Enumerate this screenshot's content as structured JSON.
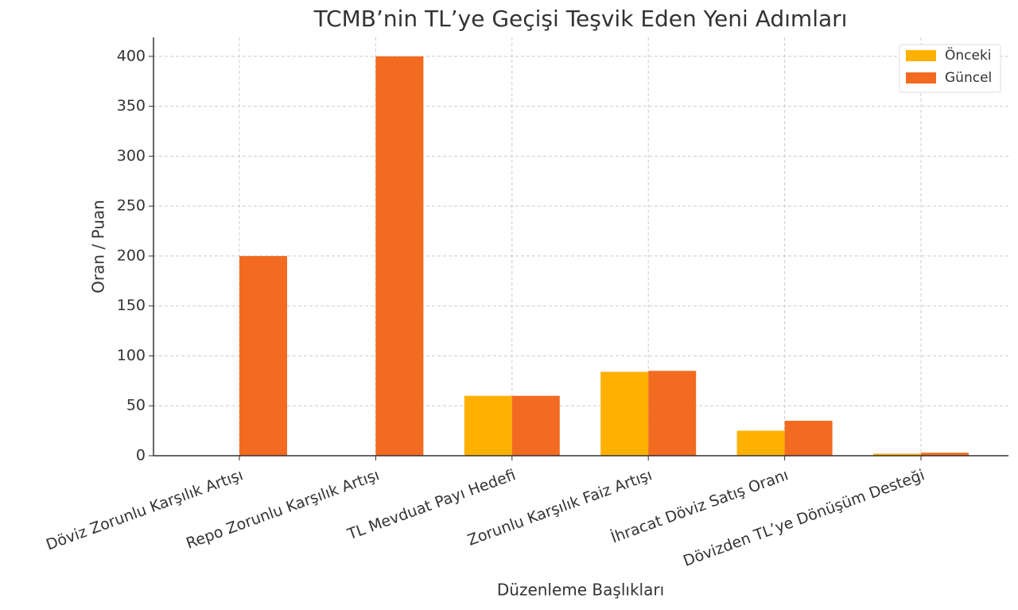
{
  "chart_data": {
    "type": "bar",
    "title": "TCMB’nin TL’ye Geçişi Teşvik Eden Yeni Adımları",
    "x_label": "Düzenleme Başlıkları",
    "y_label": "Oran / Puan",
    "categories": [
      "Döviz Zorunlu Karşılık Artışı",
      "Repo Zorunlu Karşılık Artışı",
      "TL Mevduat Payı Hedefi",
      "Zorunlu Karşılık Faiz Artışı",
      "İhracat Döviz Satış Oranı",
      "Dövizden TL’ye Dönüşüm Desteği"
    ],
    "series": [
      {
        "name": "Önceki",
        "color": "#ffb000",
        "values": [
          0,
          0,
          60,
          84,
          25,
          2
        ]
      },
      {
        "name": "Güncel",
        "color": "#f26b21",
        "values": [
          200,
          400,
          60,
          85,
          35,
          3
        ]
      }
    ],
    "ylim": [
      0,
      419
    ],
    "yticks": [
      0,
      50,
      100,
      150,
      200,
      250,
      300,
      350,
      400
    ],
    "grid": true,
    "legend": "upper-right"
  }
}
